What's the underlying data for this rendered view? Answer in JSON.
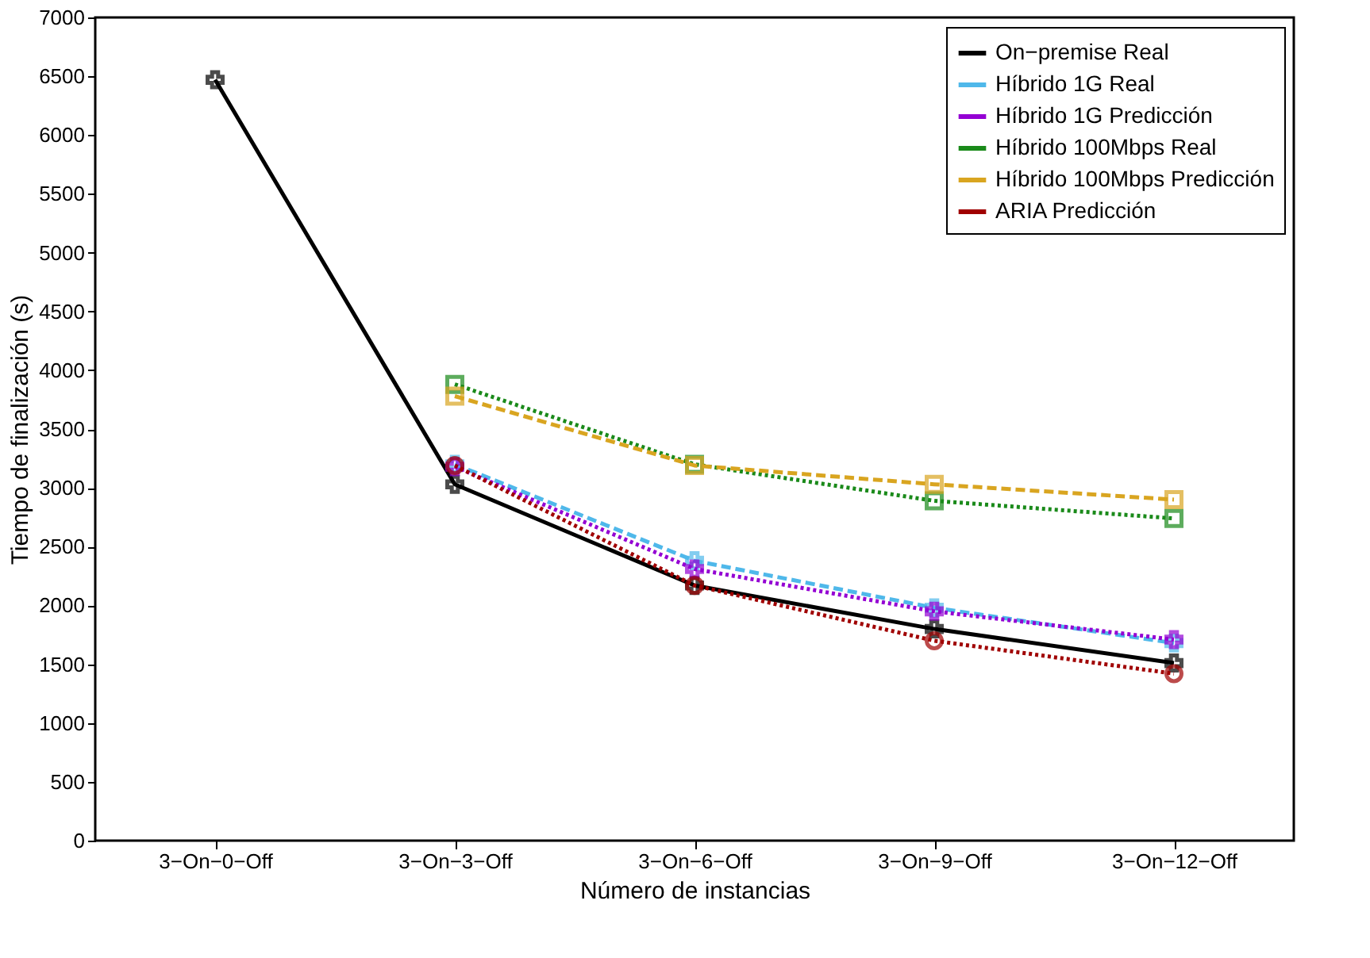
{
  "chart_data": {
    "type": "line",
    "xlabel": "Número de instancias",
    "ylabel": "Tiempo de finalización (s)",
    "categories": [
      "3−On−0−Off",
      "3−On−3−Off",
      "3−On−6−Off",
      "3−On−9−Off",
      "3−On−12−Off"
    ],
    "series": [
      {
        "name": "On−premise Real",
        "color": "#000000",
        "marker": "cross",
        "line_style": "solid",
        "values": [
          6470,
          3030,
          2170,
          1800,
          1510
        ]
      },
      {
        "name": "Híbrido 1G Real",
        "color": "#4fb8ea",
        "marker": "cross",
        "line_style": "dashed",
        "values": [
          null,
          3200,
          2380,
          1980,
          1680
        ]
      },
      {
        "name": "Híbrido 1G Predicción",
        "color": "#9400d3",
        "marker": "cross",
        "line_style": "dotted",
        "values": [
          null,
          3180,
          2310,
          1950,
          1710
        ]
      },
      {
        "name": "Híbrido 100Mbps Real",
        "color": "#1a8a1a",
        "marker": "square",
        "line_style": "dotted",
        "values": [
          null,
          3880,
          3200,
          2890,
          2740
        ]
      },
      {
        "name": "Híbrido 100Mbps Predicción",
        "color": "#d9a520",
        "marker": "square",
        "line_style": "dashed",
        "values": [
          null,
          3780,
          3190,
          3030,
          2900
        ]
      },
      {
        "name": "ARIA Predicción",
        "color": "#a00000",
        "marker": "circle",
        "line_style": "dotted",
        "values": [
          null,
          3190,
          2170,
          1700,
          1420
        ]
      }
    ],
    "ylim": [
      0,
      7000
    ],
    "yticks": [
      0,
      500,
      1000,
      1500,
      2000,
      2500,
      3000,
      3500,
      4000,
      4500,
      5000,
      5500,
      6000,
      6500,
      7000
    ],
    "grid": false,
    "legend": "top right"
  }
}
